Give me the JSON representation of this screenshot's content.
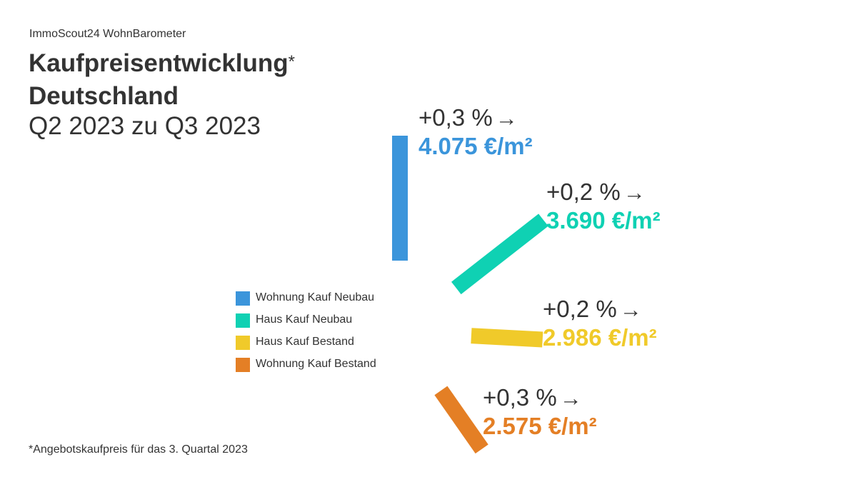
{
  "header": {
    "source": "ImmoScout24 WohnBarometer",
    "title_line1": "Kaufpreisentwicklung",
    "title_mark": "*",
    "title_line2": "Deutschland",
    "subtitle": "Q2 2023 zu Q3 2023"
  },
  "footnote": "*Angebotskaufpreis für das 3. Quartal 2023",
  "icons": {
    "arrow": "→"
  },
  "chart_data": {
    "type": "bar",
    "title": "Kaufpreisentwicklung* Deutschland",
    "subtitle": "Q2 2023 zu Q3 2023",
    "legend_position": "left",
    "grid": false,
    "series": [
      {
        "name": "Wohnung Kauf Neubau",
        "color": "#3b95db",
        "change_label": "+0,3 %",
        "change_pct": 0.3,
        "price_label": "4.075 €/m²",
        "price": 4075,
        "angle_deg": 90
      },
      {
        "name": "Haus Kauf Neubau",
        "color": "#0fd1b3",
        "change_label": "+0,2 %",
        "change_pct": 0.2,
        "price_label": "3.690 €/m²",
        "price": 3690,
        "angle_deg": 38
      },
      {
        "name": "Haus Kauf Bestand",
        "color": "#f0ca2a",
        "change_label": "+0,2 %",
        "change_pct": 0.2,
        "price_label": "2.986 €/m²",
        "price": 2986,
        "angle_deg": -3
      },
      {
        "name": "Wohnung Kauf Bestand",
        "color": "#e47f25",
        "change_label": "+0,3 %",
        "change_pct": 0.3,
        "price_label": "2.575 €/m²",
        "price": 2575,
        "angle_deg": -55
      }
    ]
  }
}
